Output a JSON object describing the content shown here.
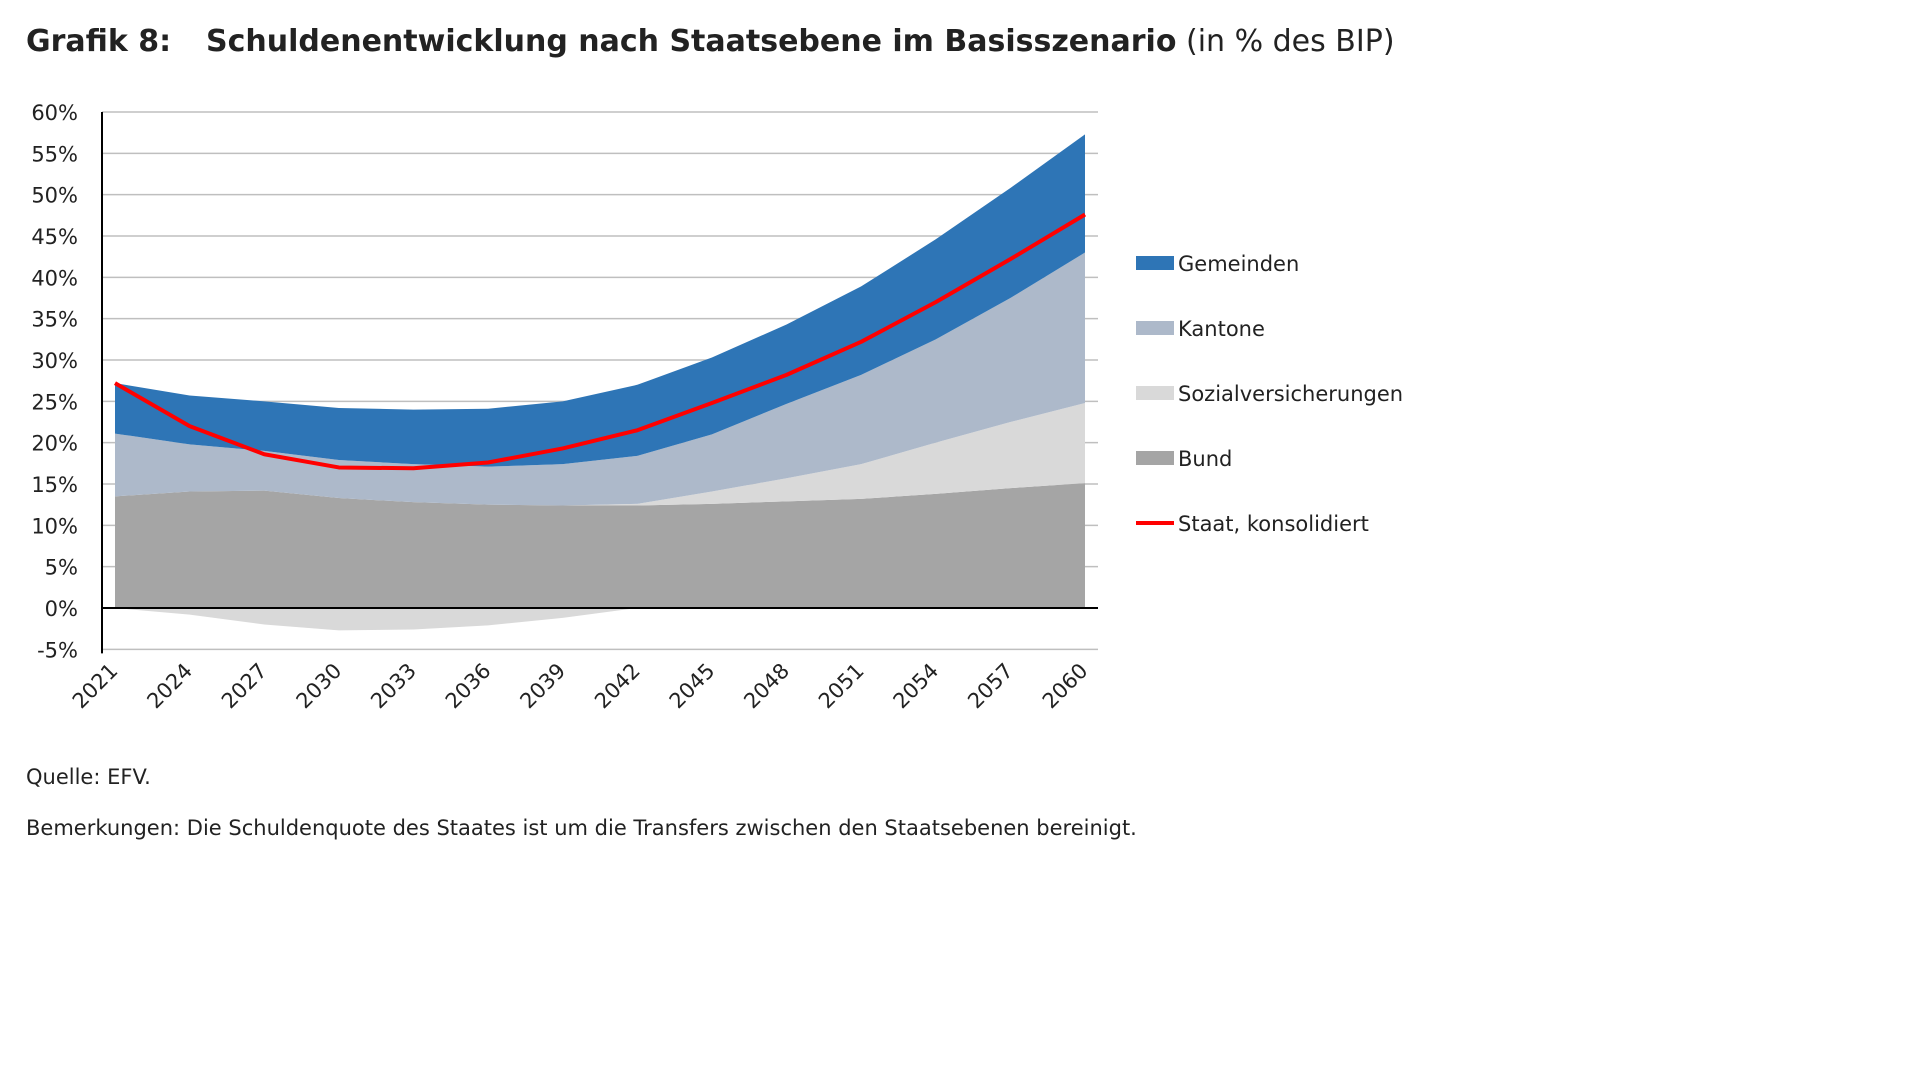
{
  "header": {
    "figure_number": "Grafik 8:",
    "title": "Schuldenentwicklung nach Staatsebene im Basisszenario",
    "unit": "(in % des BIP)"
  },
  "footer": {
    "source": "Quelle: EFV.",
    "remarks": "Bemerkungen: Die Schuldenquote des Staates ist um die Transfers zwischen den Staatsebenen bereinigt."
  },
  "chart_data": {
    "type": "area",
    "stacked": true,
    "x": [
      2021,
      2024,
      2027,
      2030,
      2033,
      2036,
      2039,
      2042,
      2045,
      2048,
      2051,
      2054,
      2057,
      2060
    ],
    "xticks": [
      "2021",
      "2024",
      "2027",
      "2030",
      "2033",
      "2036",
      "2039",
      "2042",
      "2045",
      "2048",
      "2051",
      "2054",
      "2057",
      "2060"
    ],
    "yticks": [
      "-5%",
      "0%",
      "5%",
      "10%",
      "15%",
      "20%",
      "25%",
      "30%",
      "35%",
      "40%",
      "45%",
      "50%",
      "55%",
      "60%"
    ],
    "ylim": [
      -5,
      60
    ],
    "grid": true,
    "legend_position": "right",
    "series": [
      {
        "name": "Bund",
        "color": "#a5a5a5",
        "values": [
          13.5,
          14.1,
          14.2,
          13.3,
          12.8,
          12.5,
          12.4,
          12.4,
          12.6,
          12.9,
          13.2,
          13.8,
          14.5,
          15.1
        ]
      },
      {
        "name": "Sozialversicherungen",
        "color": "#d9d9d9",
        "values": [
          0,
          -0.8,
          -2.0,
          -2.7,
          -2.6,
          -2.1,
          -1.2,
          0.2,
          1.5,
          2.8,
          4.2,
          6.2,
          8.0,
          9.7
        ]
      },
      {
        "name": "Kantone",
        "color": "#adb9ca",
        "values": [
          7.6,
          5.7,
          4.8,
          4.6,
          4.6,
          4.6,
          5.0,
          5.8,
          6.9,
          9.0,
          10.8,
          12.5,
          15.0,
          18.2
        ]
      },
      {
        "name": "Gemeinden",
        "color": "#2e75b6",
        "values": [
          6.1,
          5.9,
          6.0,
          6.3,
          6.6,
          7.0,
          7.6,
          8.6,
          9.3,
          9.6,
          10.7,
          12.1,
          13.3,
          14.3
        ]
      }
    ],
    "line": {
      "name": "Staat, konsolidiert",
      "color": "#ff0000",
      "values": [
        27.2,
        22.0,
        18.6,
        17.0,
        16.9,
        17.6,
        19.3,
        21.5,
        24.8,
        28.2,
        32.2,
        37.0,
        42.2,
        47.6
      ]
    },
    "legend_order": [
      "Gemeinden",
      "Kantone",
      "Sozialversicherungen",
      "Bund",
      "Staat, konsolidiert"
    ]
  }
}
